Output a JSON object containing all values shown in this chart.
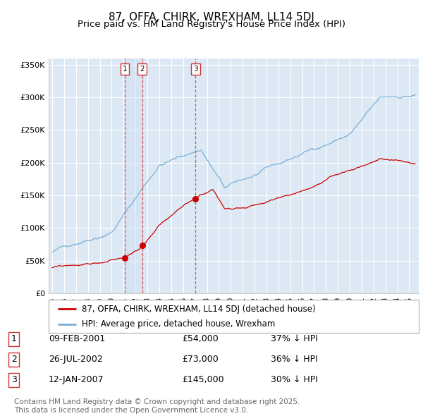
{
  "title": "87, OFFA, CHIRK, WREXHAM, LL14 5DJ",
  "subtitle": "Price paid vs. HM Land Registry's House Price Index (HPI)",
  "ylim": [
    0,
    360000
  ],
  "yticks": [
    0,
    50000,
    100000,
    150000,
    200000,
    250000,
    300000,
    350000
  ],
  "ytick_labels": [
    "£0",
    "£50K",
    "£100K",
    "£150K",
    "£200K",
    "£250K",
    "£300K",
    "£350K"
  ],
  "background_color": "#ffffff",
  "plot_bg_color": "#dce9f5",
  "grid_color": "#ffffff",
  "red_line_color": "#cc0000",
  "blue_line_color": "#7aaed6",
  "vline_color": "#dd4444",
  "shade_color": "#ddeeff",
  "transactions": [
    {
      "num": 1,
      "date": "09-FEB-2001",
      "price": 54000,
      "pct": "37%",
      "x_year": 2001.1
    },
    {
      "num": 2,
      "date": "26-JUL-2002",
      "price": 73000,
      "pct": "36%",
      "x_year": 2002.56
    },
    {
      "num": 3,
      "date": "12-JAN-2007",
      "price": 145000,
      "pct": "30%",
      "x_year": 2007.04
    }
  ],
  "legend_label_red": "87, OFFA, CHIRK, WREXHAM, LL14 5DJ (detached house)",
  "legend_label_blue": "HPI: Average price, detached house, Wrexham",
  "footer_text": "Contains HM Land Registry data © Crown copyright and database right 2025.\nThis data is licensed under the Open Government Licence v3.0.",
  "title_fontsize": 11,
  "subtitle_fontsize": 9.5,
  "tick_fontsize": 8,
  "legend_fontsize": 8.5,
  "table_fontsize": 9,
  "footer_fontsize": 7.5,
  "xlim_left": 1994.7,
  "xlim_right": 2025.8,
  "x_ticks_start": 1995,
  "x_ticks_end": 2025
}
